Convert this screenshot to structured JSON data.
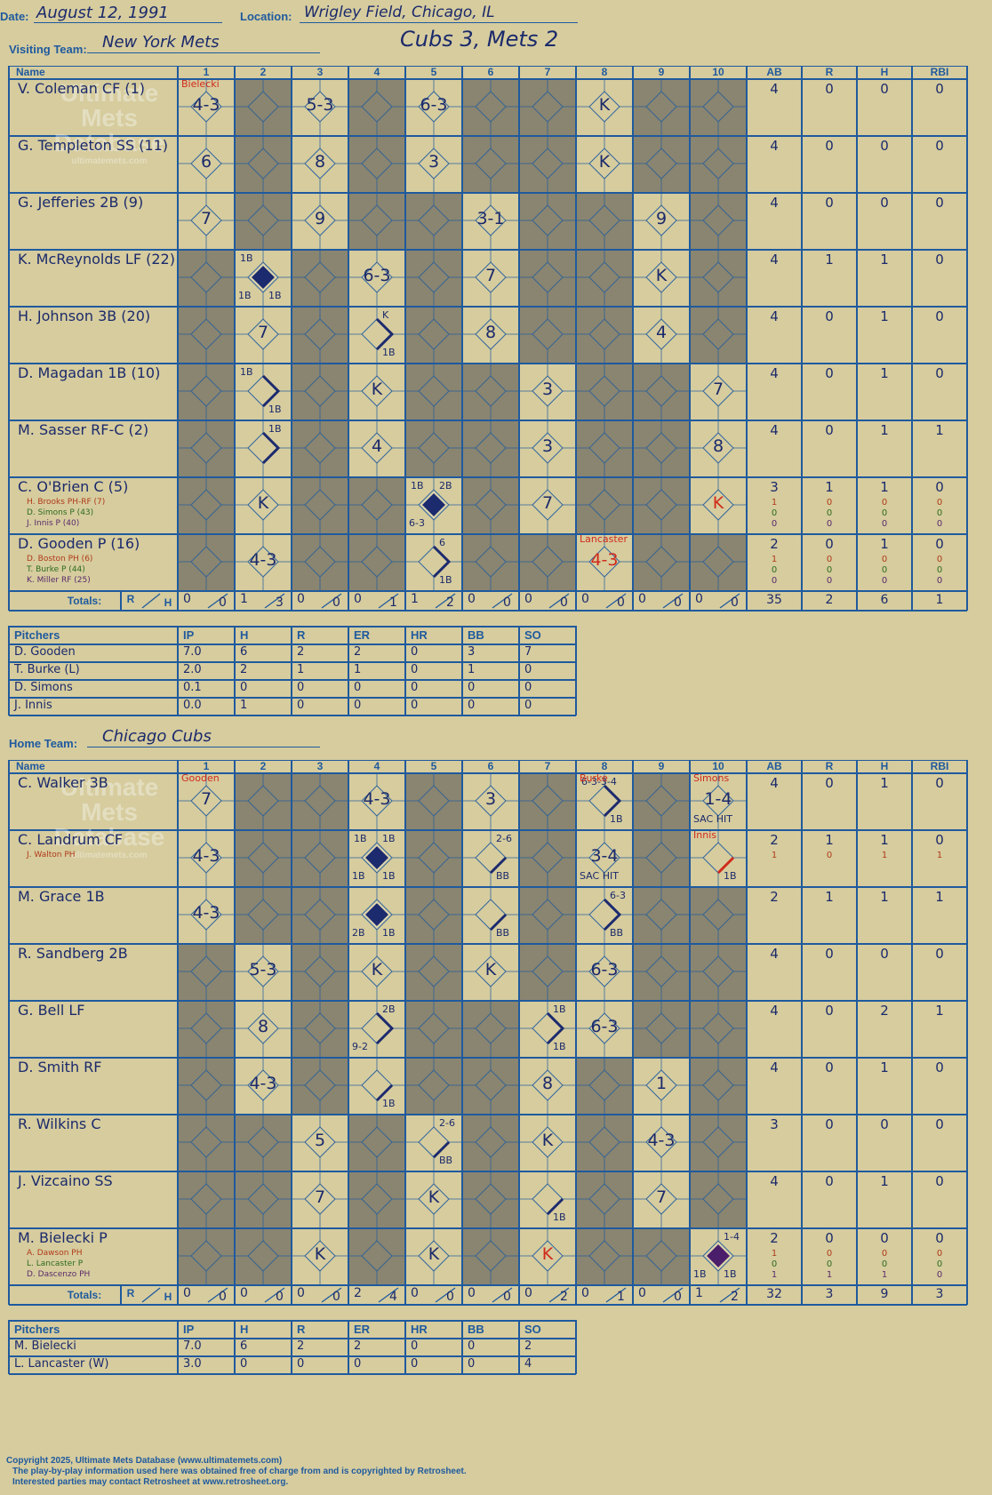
{
  "header": {
    "date_label": "Date:",
    "date": "August 12, 1991",
    "location_label": "Location:",
    "location": "Wrigley Field, Chicago, IL",
    "visiting_label": "Visiting Team:",
    "visiting_team": "New York Mets",
    "result": "Cubs 3, Mets 2",
    "home_label": "Home Team:",
    "home_team": "Chicago Cubs"
  },
  "columns": {
    "name": "Name",
    "innings": [
      "1",
      "2",
      "3",
      "4",
      "5",
      "6",
      "7",
      "8",
      "9",
      "10"
    ],
    "stats": [
      "AB",
      "R",
      "H",
      "RBI"
    ],
    "totals": "Totals:",
    "r": "R",
    "h": "H"
  },
  "pitching_columns": [
    "Pitchers",
    "IP",
    "H",
    "R",
    "ER",
    "HR",
    "BB",
    "SO"
  ],
  "watermark": [
    "Ultimate",
    "Mets",
    "Database",
    "ultimatemets.com"
  ],
  "visitors": {
    "batters": [
      {
        "name": "V. Coleman CF (1)",
        "stats": [
          "4",
          "0",
          "0",
          "0"
        ],
        "subs": [],
        "plays": [
          {
            "inn": 1,
            "text": "4-3",
            "note": "Bielecki"
          },
          {
            "inn": 3,
            "text": "5-3"
          },
          {
            "inn": 5,
            "text": "6-3"
          },
          {
            "inn": 8,
            "text": "K"
          }
        ]
      },
      {
        "name": "G. Templeton SS (11)",
        "stats": [
          "4",
          "0",
          "0",
          "0"
        ],
        "subs": [],
        "plays": [
          {
            "inn": 1,
            "text": "6"
          },
          {
            "inn": 3,
            "text": "8"
          },
          {
            "inn": 5,
            "text": "3"
          },
          {
            "inn": 8,
            "text": "K"
          }
        ]
      },
      {
        "name": "G. Jefferies 2B (9)",
        "stats": [
          "4",
          "0",
          "0",
          "0"
        ],
        "subs": [],
        "plays": [
          {
            "inn": 1,
            "text": "7"
          },
          {
            "inn": 3,
            "text": "9"
          },
          {
            "inn": 6,
            "text": "3-1"
          },
          {
            "inn": 9,
            "text": "9"
          }
        ]
      },
      {
        "name": "K. McReynolds LF (22)",
        "stats": [
          "4",
          "1",
          "1",
          "0"
        ],
        "subs": [],
        "plays": [
          {
            "inn": 2,
            "text": "",
            "run": true,
            "tl": "1B",
            "bl": "1B",
            "br": "1B"
          },
          {
            "inn": 4,
            "text": "6-3"
          },
          {
            "inn": 6,
            "text": "7"
          },
          {
            "inn": 9,
            "text": "K"
          }
        ]
      },
      {
        "name": "H. Johnson 3B (20)",
        "stats": [
          "4",
          "0",
          "1",
          "0"
        ],
        "subs": [],
        "plays": [
          {
            "inn": 2,
            "text": "7"
          },
          {
            "inn": 4,
            "text": "",
            "tr": "K",
            "br": "1B",
            "path": "right"
          },
          {
            "inn": 6,
            "text": "8"
          },
          {
            "inn": 9,
            "text": "4"
          }
        ]
      },
      {
        "name": "D. Magadan 1B (10)",
        "stats": [
          "4",
          "0",
          "1",
          "0"
        ],
        "subs": [],
        "plays": [
          {
            "inn": 2,
            "text": "",
            "tl": "1B",
            "br": "1B",
            "path": "right"
          },
          {
            "inn": 4,
            "text": "K"
          },
          {
            "inn": 7,
            "text": "3"
          },
          {
            "inn": 10,
            "text": "7"
          }
        ]
      },
      {
        "name": "M. Sasser RF-C (2)",
        "stats": [
          "4",
          "0",
          "1",
          "1"
        ],
        "subs": [],
        "plays": [
          {
            "inn": 2,
            "text": "",
            "tr": "1B",
            "path": "right"
          },
          {
            "inn": 4,
            "text": "4"
          },
          {
            "inn": 7,
            "text": "3"
          },
          {
            "inn": 10,
            "text": "8"
          }
        ]
      },
      {
        "name": "C. O'Brien C (5)",
        "stats": [
          "3",
          "1",
          "1",
          "0"
        ],
        "subs": [
          {
            "name": "H. Brooks PH-RF (7)",
            "color": "#b03a1a",
            "stats": [
              "1",
              "0",
              "0",
              "0"
            ]
          },
          {
            "name": "D. Simons P (43)",
            "color": "#2e6b1e",
            "stats": [
              "0",
              "0",
              "0",
              "0"
            ]
          },
          {
            "name": "J. Innis P (40)",
            "color": "#5a2a6b",
            "stats": [
              "0",
              "0",
              "0",
              "0"
            ]
          }
        ],
        "plays": [
          {
            "inn": 2,
            "text": "K"
          },
          {
            "inn": 5,
            "text": "",
            "run": true,
            "tl": "1B",
            "tr": "2B",
            "bl": "6-3"
          },
          {
            "inn": 7,
            "text": "7"
          },
          {
            "inn": 10,
            "text": "K",
            "red": true
          }
        ]
      },
      {
        "name": "D. Gooden P (16)",
        "stats": [
          "2",
          "0",
          "1",
          "0"
        ],
        "subs": [
          {
            "name": "D. Boston PH (6)",
            "color": "#b03a1a",
            "stats": [
              "1",
              "0",
              "0",
              "0"
            ]
          },
          {
            "name": "T. Burke P (44)",
            "color": "#2e6b1e",
            "stats": [
              "0",
              "0",
              "0",
              "0"
            ]
          },
          {
            "name": "K. Miller RF (25)",
            "color": "#5a2a6b",
            "stats": [
              "0",
              "0",
              "0",
              "0"
            ]
          }
        ],
        "plays": [
          {
            "inn": 2,
            "text": "4-3"
          },
          {
            "inn": 5,
            "text": "",
            "tr": "6",
            "br": "1B",
            "path": "right"
          },
          {
            "inn": 8,
            "text": "4-3",
            "red": true,
            "note": "Lancaster"
          }
        ]
      }
    ],
    "totals": {
      "rh": [
        [
          "0",
          "0"
        ],
        [
          "1",
          "3"
        ],
        [
          "0",
          "0"
        ],
        [
          "0",
          "1"
        ],
        [
          "1",
          "2"
        ],
        [
          "0",
          "0"
        ],
        [
          "0",
          "0"
        ],
        [
          "0",
          "0"
        ],
        [
          "0",
          "0"
        ],
        [
          "0",
          "0"
        ]
      ],
      "stats": [
        "35",
        "2",
        "6",
        "1"
      ]
    },
    "pitchers": [
      {
        "name": "D. Gooden",
        "vals": [
          "7.0",
          "6",
          "2",
          "2",
          "0",
          "3",
          "7"
        ]
      },
      {
        "name": "T. Burke (L)",
        "vals": [
          "2.0",
          "2",
          "1",
          "1",
          "0",
          "1",
          "0"
        ]
      },
      {
        "name": "D. Simons",
        "vals": [
          "0.1",
          "0",
          "0",
          "0",
          "0",
          "0",
          "0"
        ]
      },
      {
        "name": "J. Innis",
        "vals": [
          "0.0",
          "1",
          "0",
          "0",
          "0",
          "0",
          "0"
        ]
      }
    ]
  },
  "home": {
    "batters": [
      {
        "name": "C. Walker 3B",
        "stats": [
          "4",
          "0",
          "1",
          "0"
        ],
        "subs": [],
        "plays": [
          {
            "inn": 1,
            "text": "7",
            "note": "Gooden"
          },
          {
            "inn": 4,
            "text": "4-3"
          },
          {
            "inn": 6,
            "text": "3"
          },
          {
            "inn": 8,
            "text": "",
            "tl": "6-3-3-4",
            "br": "1B",
            "path": "right",
            "note": "Burke"
          },
          {
            "inn": 10,
            "text": "1-4",
            "bl": "SAC HIT",
            "note": "Simons"
          }
        ]
      },
      {
        "name": "C. Landrum CF",
        "stats": [
          "2",
          "1",
          "1",
          "0"
        ],
        "subs": [
          {
            "name": "J. Walton PH",
            "color": "#b03a1a",
            "stats": [
              "1",
              "0",
              "1",
              "1"
            ]
          }
        ],
        "plays": [
          {
            "inn": 1,
            "text": "4-3"
          },
          {
            "inn": 4,
            "text": "",
            "run": true,
            "tl": "1B",
            "tr": "1B",
            "bl": "1B",
            "br": "1B"
          },
          {
            "inn": 6,
            "text": "",
            "tr": "2-6",
            "br": "BB",
            "path": "left"
          },
          {
            "inn": 8,
            "text": "3-4",
            "bl": "SAC HIT"
          },
          {
            "inn": 10,
            "text": "",
            "br": "1B",
            "path": "red",
            "note": "Innis"
          }
        ]
      },
      {
        "name": "M. Grace 1B",
        "stats": [
          "2",
          "1",
          "1",
          "1"
        ],
        "subs": [],
        "plays": [
          {
            "inn": 1,
            "text": "4-3"
          },
          {
            "inn": 4,
            "text": "",
            "run": true,
            "bl": "2B",
            "br": "1B"
          },
          {
            "inn": 6,
            "text": "",
            "br": "BB",
            "path": "left"
          },
          {
            "inn": 8,
            "text": "",
            "tr": "6-3",
            "br": "BB",
            "path": "right"
          }
        ]
      },
      {
        "name": "R. Sandberg 2B",
        "stats": [
          "4",
          "0",
          "0",
          "0"
        ],
        "subs": [],
        "plays": [
          {
            "inn": 2,
            "text": "5-3"
          },
          {
            "inn": 4,
            "text": "K"
          },
          {
            "inn": 6,
            "text": "K"
          },
          {
            "inn": 8,
            "text": "6-3"
          }
        ]
      },
      {
        "name": "G. Bell LF",
        "stats": [
          "4",
          "0",
          "2",
          "1"
        ],
        "subs": [],
        "plays": [
          {
            "inn": 2,
            "text": "8"
          },
          {
            "inn": 4,
            "text": "",
            "tr": "2B",
            "bl": "9-2",
            "path": "right"
          },
          {
            "inn": 7,
            "text": "",
            "tr": "1B",
            "br": "1B",
            "path": "right"
          },
          {
            "inn": 8,
            "text": "6-3"
          }
        ]
      },
      {
        "name": "D. Smith RF",
        "stats": [
          "4",
          "0",
          "1",
          "0"
        ],
        "subs": [],
        "plays": [
          {
            "inn": 2,
            "text": "4-3"
          },
          {
            "inn": 4,
            "text": "",
            "br": "1B",
            "path": "left"
          },
          {
            "inn": 7,
            "text": "8"
          },
          {
            "inn": 9,
            "text": "1"
          }
        ]
      },
      {
        "name": "R. Wilkins C",
        "stats": [
          "3",
          "0",
          "0",
          "0"
        ],
        "subs": [],
        "plays": [
          {
            "inn": 3,
            "text": "5"
          },
          {
            "inn": 5,
            "text": "",
            "tr": "2-6",
            "br": "BB",
            "path": "left"
          },
          {
            "inn": 7,
            "text": "K"
          },
          {
            "inn": 9,
            "text": "4-3"
          }
        ]
      },
      {
        "name": "J. Vizcaino SS",
        "stats": [
          "4",
          "0",
          "1",
          "0"
        ],
        "subs": [],
        "plays": [
          {
            "inn": 3,
            "text": "7"
          },
          {
            "inn": 5,
            "text": "K"
          },
          {
            "inn": 7,
            "text": "",
            "br": "1B",
            "path": "left"
          },
          {
            "inn": 9,
            "text": "7"
          }
        ]
      },
      {
        "name": "M. Bielecki P",
        "stats": [
          "2",
          "0",
          "0",
          "0"
        ],
        "subs": [
          {
            "name": "A. Dawson PH",
            "color": "#b03a1a",
            "stats": [
              "1",
              "0",
              "0",
              "0"
            ]
          },
          {
            "name": "L. Lancaster P",
            "color": "#2e6b1e",
            "stats": [
              "0",
              "0",
              "0",
              "0"
            ]
          },
          {
            "name": "D. Dascenzo PH",
            "color": "#5a2a6b",
            "stats": [
              "1",
              "1",
              "1",
              "0"
            ]
          }
        ],
        "plays": [
          {
            "inn": 3,
            "text": "K"
          },
          {
            "inn": 5,
            "text": "K"
          },
          {
            "inn": 7,
            "text": "K",
            "red": true
          },
          {
            "inn": 10,
            "text": "",
            "run": true,
            "purple": true,
            "tr": "1-4",
            "bl": "1B",
            "br": "1B"
          }
        ]
      }
    ],
    "totals": {
      "rh": [
        [
          "0",
          "0"
        ],
        [
          "0",
          "0"
        ],
        [
          "0",
          "0"
        ],
        [
          "2",
          "4"
        ],
        [
          "0",
          "0"
        ],
        [
          "0",
          "0"
        ],
        [
          "0",
          "2"
        ],
        [
          "0",
          "1"
        ],
        [
          "0",
          "0"
        ],
        [
          "1",
          "2"
        ]
      ],
      "stats": [
        "32",
        "3",
        "9",
        "3"
      ]
    },
    "pitchers": [
      {
        "name": "M. Bielecki",
        "vals": [
          "7.0",
          "6",
          "2",
          "2",
          "0",
          "0",
          "2"
        ]
      },
      {
        "name": "L. Lancaster (W)",
        "vals": [
          "3.0",
          "0",
          "0",
          "0",
          "0",
          "0",
          "4"
        ]
      }
    ]
  },
  "footer": {
    "line1": "Copyright 2025, Ultimate Mets Database (www.ultimatemets.com)",
    "line2": "The play-by-play information used here was obtained free of charge from and is copyrighted by Retrosheet.",
    "line3": "Interested parties may contact Retrosheet at www.retrosheet.org."
  },
  "colors": {
    "grid": "#1f5a9e",
    "ink": "#1b2a6b",
    "shade": "#8a8570",
    "paper": "#d6cc9e",
    "red": "#d12a1a",
    "runner": "#1c2a6e",
    "runner_purple": "#4b1e6b"
  }
}
